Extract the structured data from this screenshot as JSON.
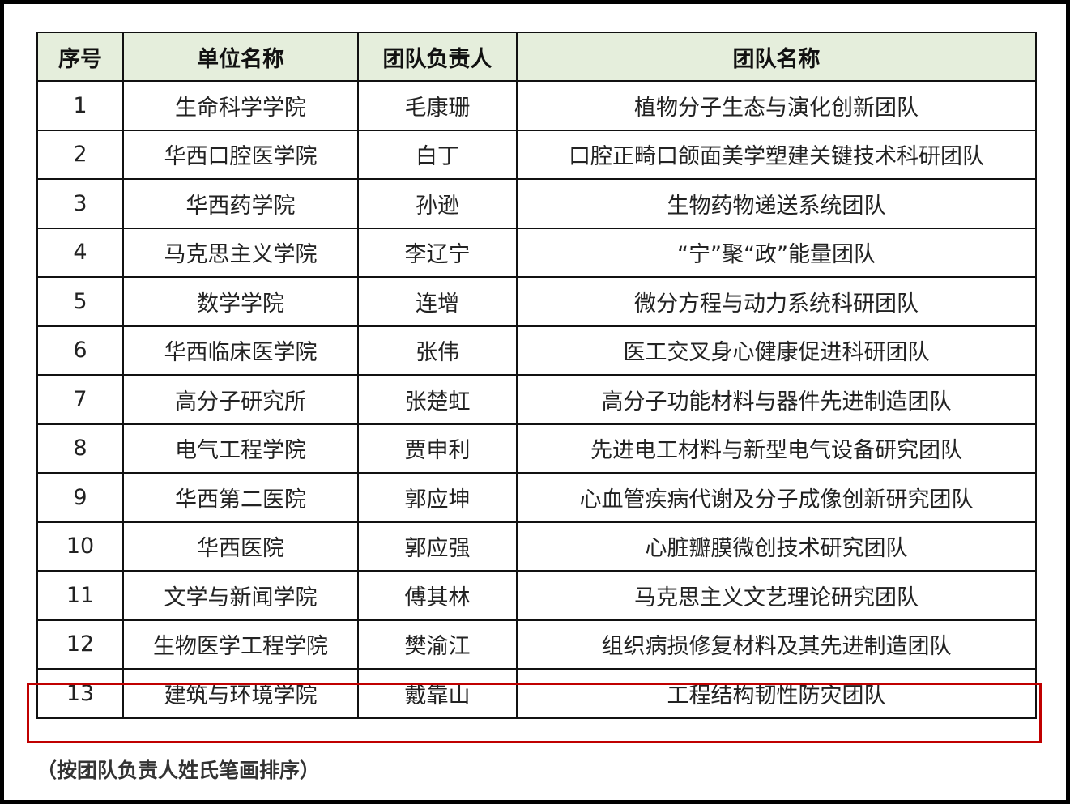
{
  "table": {
    "headers": [
      "序号",
      "单位名称",
      "团队负责人",
      "团队名称"
    ],
    "rows": [
      [
        "1",
        "生命科学学院",
        "毛康珊",
        "植物分子生态与演化创新团队"
      ],
      [
        "2",
        "华西口腔医学院",
        "白丁",
        "口腔正畸口颌面美学塑建关键技术科研团队"
      ],
      [
        "3",
        "华西药学院",
        "孙逊",
        "生物药物递送系统团队"
      ],
      [
        "4",
        "马克思主义学院",
        "李辽宁",
        "“宁”聚“政”能量团队"
      ],
      [
        "5",
        "数学学院",
        "连增",
        "微分方程与动力系统科研团队"
      ],
      [
        "6",
        "华西临床医学院",
        "张伟",
        "医工交叉身心健康促进科研团队"
      ],
      [
        "7",
        "高分子研究所",
        "张楚虹",
        "高分子功能材料与器件先进制造团队"
      ],
      [
        "8",
        "电气工程学院",
        "贾申利",
        "先进电工材料与新型电气设备研究团队"
      ],
      [
        "9",
        "华西第二医院",
        "郭应坤",
        "心血管疾病代谢及分子成像创新研究团队"
      ],
      [
        "10",
        "华西医院",
        "郭应强",
        "心脏瓣膜微创技术研究团队"
      ],
      [
        "11",
        "文学与新闻学院",
        "傅其林",
        "马克思主义文艺理论研究团队"
      ],
      [
        "12",
        "生物医学工程学院",
        "樊渝江",
        "组织病损修复材料及其先进制造团队"
      ],
      [
        "13",
        "建筑与环境学院",
        "戴靠山",
        "工程结构韧性防灾团队"
      ]
    ],
    "highlighted_row": 13
  },
  "note": "（按团队负责人姓氏笔画排序）",
  "colors": {
    "header_bg": "#e5eedc",
    "highlight_border": "#c00000"
  }
}
